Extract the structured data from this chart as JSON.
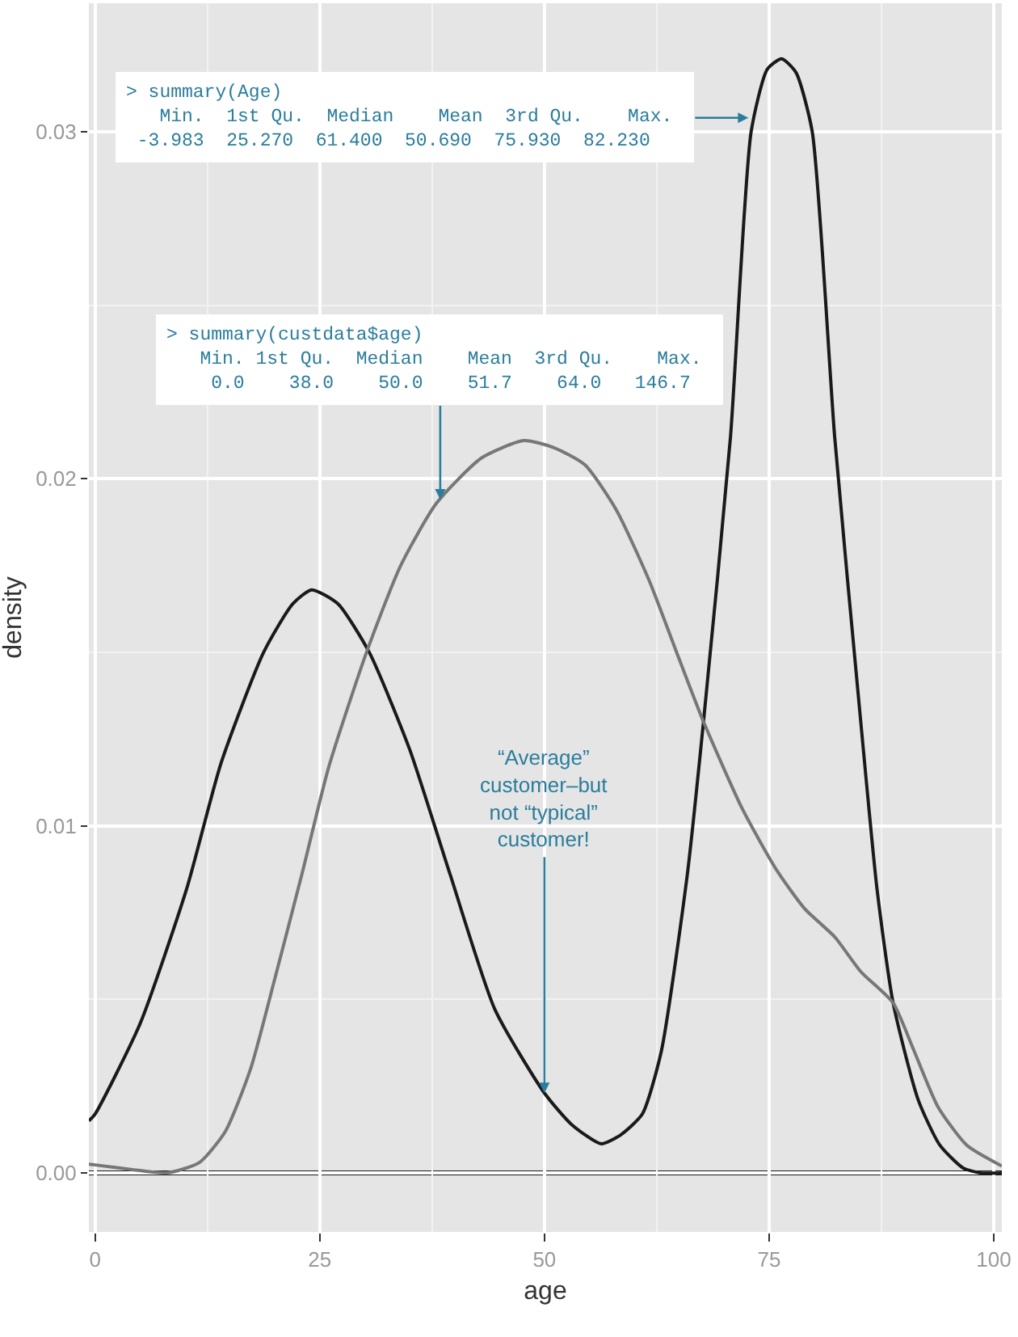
{
  "chart_data": {
    "type": "line",
    "xlabel": "age",
    "ylabel": "density",
    "xlim": [
      -0.7,
      100.9
    ],
    "xticks": [
      0,
      25,
      50,
      75,
      100
    ],
    "ylim": [
      -0.0017,
      0.0337
    ],
    "yticks": [
      {
        "value": 0,
        "label": "0.00"
      },
      {
        "value": 0.01,
        "label": "0.01"
      },
      {
        "value": 0.02,
        "label": "0.02"
      },
      {
        "value": 0.03,
        "label": "0.03"
      }
    ],
    "grid": true,
    "marker": "none",
    "line_style": "solid",
    "series": [
      {
        "color": "#1a1a1a",
        "x": [
          -0.7,
          0,
          5,
          10.2,
          14,
          18.75,
          22,
          24.1,
          27,
          30.5,
          35,
          39.5,
          44.5,
          50,
          53,
          56.3,
          58.5,
          60.9,
          63,
          65.9,
          67.7,
          70.7,
          73,
          74.8,
          76.4,
          78,
          79.8,
          82.3,
          85.2,
          87,
          88.8,
          91.6,
          94,
          96.6,
          98.5,
          100.9
        ],
        "values": [
          0.0015,
          0.0017,
          0.0043,
          0.0082,
          0.0118,
          0.015,
          0.0164,
          0.0168,
          0.0164,
          0.015,
          0.0122,
          0.0086,
          0.0047,
          0.0023,
          0.0014,
          0.00084,
          0.0011,
          0.0017,
          0.0035,
          0.0086,
          0.013,
          0.0212,
          0.03,
          0.0318,
          0.0321,
          0.0317,
          0.03,
          0.0212,
          0.013,
          0.0082,
          0.0049,
          0.0021,
          0.0008,
          0.00014,
          0,
          0
        ]
      },
      {
        "color": "#777777",
        "x": [
          -0.7,
          0,
          4,
          8,
          11.6,
          14.5,
          17.3,
          20,
          23,
          26,
          30.2,
          34,
          38,
          43,
          47.7,
          51,
          54.5,
          58,
          61.6,
          65,
          67.7,
          72,
          75.9,
          79,
          82.3,
          85.2,
          88.8,
          91,
          93.8,
          97,
          100.9
        ],
        "values": [
          0.00025,
          0.00023,
          0.0001,
          0,
          0.0003,
          0.0012,
          0.003,
          0.0056,
          0.0086,
          0.0117,
          0.015,
          0.0175,
          0.0193,
          0.0206,
          0.0211,
          0.0209,
          0.0204,
          0.0191,
          0.0171,
          0.0148,
          0.013,
          0.0105,
          0.0087,
          0.0076,
          0.0068,
          0.0058,
          0.0049,
          0.0036,
          0.0019,
          0.0008,
          0.0002
        ]
      }
    ],
    "ref_lines": [
      {
        "axis": "y",
        "value": 0,
        "color": "#1a1a1a"
      }
    ],
    "annotations": [
      {
        "text": "> summary(Age)\n   Min.  1st Qu.  Median    Mean  3rd Qu.    Max. \n -3.983  25.270  61.400  50.690  75.930  82.230 ",
        "x": 72.7,
        "y": 0.0304
      },
      {
        "text": "> summary(custdata$age)\n   Min. 1st Qu.  Median    Mean  3rd Qu.    Max. \n    0.0    38.0    50.0    51.7    64.0   146.7 ",
        "x": 38.4,
        "y": 0.0194
      },
      {
        "text": "“Average”\ncustomer–but\nnot “typical”\ncustomer!",
        "x": 50,
        "y": 0.0023
      }
    ]
  }
}
